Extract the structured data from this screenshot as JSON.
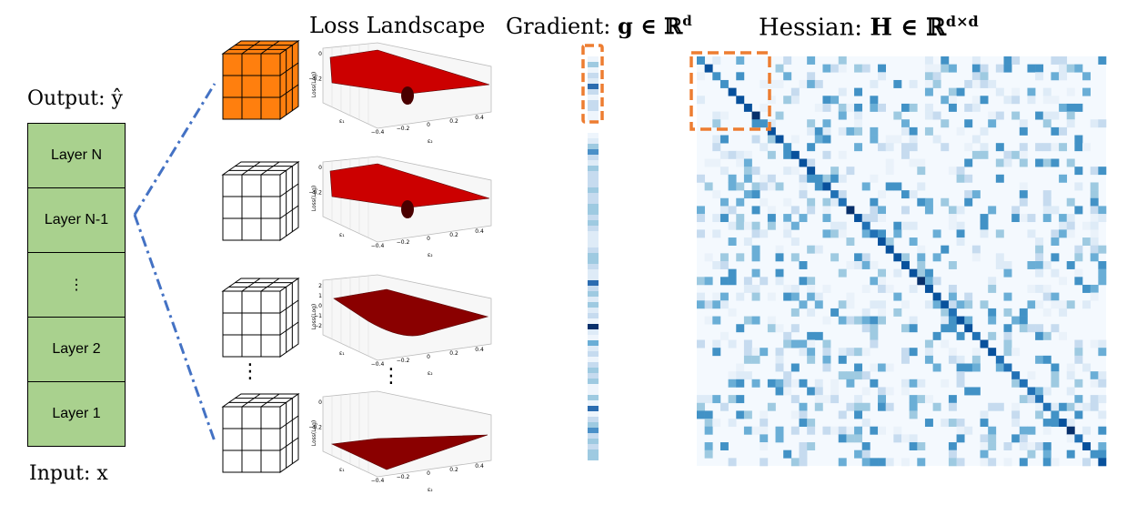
{
  "titles": {
    "loss": "Loss Landscape",
    "gradient_prefix": "Gradient:",
    "gradient_math": "g ∈ ℝ",
    "gradient_sup": "d",
    "hessian_prefix": "Hessian:",
    "hessian_math": "H ∈ ℝ",
    "hessian_sup": "d×d"
  },
  "output_label": "Output: ŷ",
  "input_label": "Input: x",
  "layers": [
    "Layer N",
    "Layer N-1",
    "⋮",
    "Layer 2",
    "Layer 1"
  ],
  "ellipsis": "⋮",
  "plot_labels": {
    "zlabel": "Loss(Log)",
    "eps1": "ε₁",
    "eps2": "ε₂",
    "xticks": [
      "−0.4",
      "−0.2",
      "0",
      "0.2",
      "0.4"
    ],
    "zticks_1": [
      "0",
      "−0.2"
    ],
    "zticks_3": [
      "2",
      "1",
      "0",
      "−1",
      "−2"
    ]
  },
  "colors": {
    "layer_fill": "#a9d18e",
    "cube_highlight": "#ff7f0e",
    "dash_box": "#ed7d31",
    "link_line": "#4472c4",
    "surface": "#cc0000",
    "heat_dark": "#08306b"
  }
}
